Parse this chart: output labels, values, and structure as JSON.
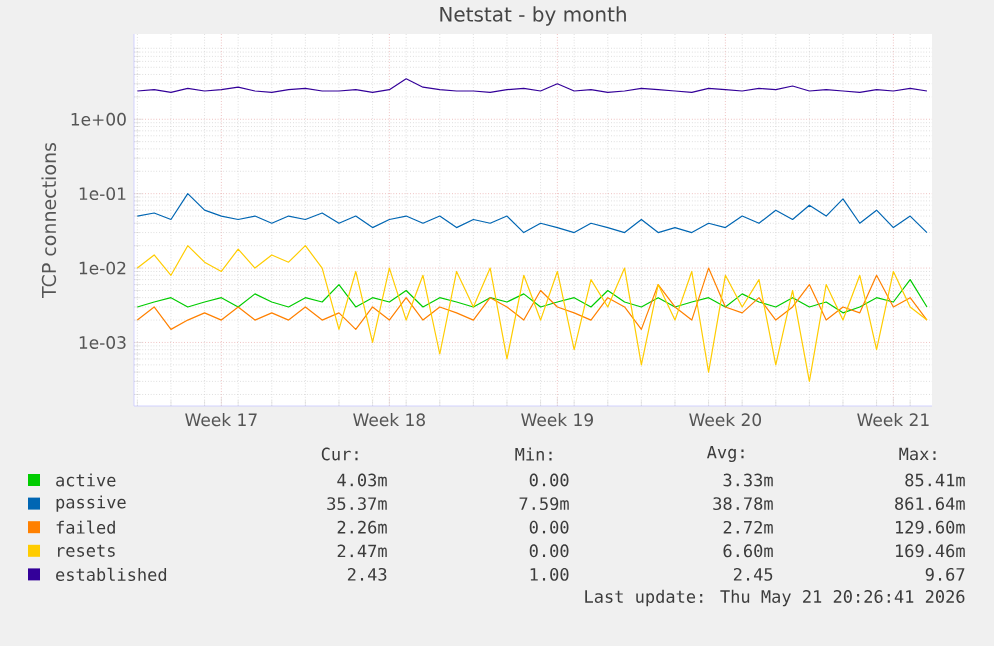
{
  "chart_data": {
    "type": "line",
    "title": "Netstat - by month",
    "ylabel": "TCP connections",
    "log": "y",
    "grid": true,
    "legend": "bottom",
    "marker": "none",
    "line_style": "solid",
    "categories": [
      null,
      null,
      null,
      null,
      null,
      "Week 17",
      null,
      null,
      null,
      null,
      null,
      null,
      null,
      null,
      null,
      "Week 18",
      null,
      null,
      null,
      null,
      null,
      null,
      null,
      null,
      null,
      "Week 19",
      null,
      null,
      null,
      null,
      null,
      null,
      null,
      null,
      null,
      "Week 20",
      null,
      null,
      null,
      null,
      null,
      null,
      null,
      null,
      null,
      "Week 21",
      null,
      null
    ],
    "ylim": [
      0.00014,
      14
    ],
    "yticks": [
      {
        "value": 0.001,
        "label": "1e-03"
      },
      {
        "value": 0.01,
        "label": "1e-02"
      },
      {
        "value": 0.1,
        "label": "1e-01"
      },
      {
        "value": 1,
        "label": "1e+00"
      }
    ],
    "series": [
      {
        "name": "active",
        "color": "#00cc00",
        "values": [
          0.003,
          0.0035,
          0.004,
          0.003,
          0.0035,
          0.004,
          0.003,
          0.0045,
          0.0035,
          0.003,
          0.004,
          0.0035,
          0.006,
          0.003,
          0.004,
          0.0035,
          0.005,
          0.003,
          0.004,
          0.0035,
          0.003,
          0.004,
          0.0035,
          0.0045,
          0.003,
          0.0035,
          0.004,
          0.003,
          0.005,
          0.0035,
          0.003,
          0.004,
          0.003,
          0.0035,
          0.004,
          0.003,
          0.0045,
          0.0035,
          0.003,
          0.004,
          0.003,
          0.0035,
          0.0025,
          0.003,
          0.004,
          0.0035,
          0.007,
          0.003
        ]
      },
      {
        "name": "passive",
        "color": "#0066b3",
        "values": [
          0.05,
          0.055,
          0.045,
          0.1,
          0.06,
          0.05,
          0.045,
          0.05,
          0.04,
          0.05,
          0.045,
          0.055,
          0.04,
          0.05,
          0.035,
          0.045,
          0.05,
          0.04,
          0.05,
          0.035,
          0.045,
          0.04,
          0.05,
          0.03,
          0.04,
          0.035,
          0.03,
          0.04,
          0.035,
          0.03,
          0.045,
          0.03,
          0.035,
          0.03,
          0.04,
          0.035,
          0.05,
          0.04,
          0.06,
          0.045,
          0.07,
          0.05,
          0.085,
          0.04,
          0.06,
          0.035,
          0.05,
          0.03
        ]
      },
      {
        "name": "failed",
        "color": "#ff8000",
        "values": [
          0.002,
          0.003,
          0.0015,
          0.002,
          0.0025,
          0.002,
          0.003,
          0.002,
          0.0025,
          0.002,
          0.003,
          0.002,
          0.0025,
          0.0015,
          0.003,
          0.002,
          0.004,
          0.002,
          0.003,
          0.0025,
          0.002,
          0.004,
          0.003,
          0.002,
          0.005,
          0.003,
          0.0025,
          0.002,
          0.004,
          0.003,
          0.0015,
          0.006,
          0.003,
          0.002,
          0.01,
          0.003,
          0.0025,
          0.004,
          0.002,
          0.003,
          0.006,
          0.002,
          0.003,
          0.0025,
          0.008,
          0.003,
          0.004,
          0.002
        ]
      },
      {
        "name": "resets",
        "color": "#ffcc00",
        "values": [
          0.01,
          0.015,
          0.008,
          0.02,
          0.012,
          0.009,
          0.018,
          0.01,
          0.015,
          0.012,
          0.02,
          0.01,
          0.0015,
          0.009,
          0.001,
          0.01,
          0.002,
          0.008,
          0.0007,
          0.009,
          0.003,
          0.01,
          0.0006,
          0.008,
          0.002,
          0.009,
          0.0008,
          0.007,
          0.003,
          0.01,
          0.0005,
          0.006,
          0.002,
          0.009,
          0.0004,
          0.008,
          0.003,
          0.007,
          0.0005,
          0.005,
          0.0003,
          0.006,
          0.002,
          0.008,
          0.0008,
          0.009,
          0.003,
          0.002
        ]
      },
      {
        "name": "established",
        "color": "#330099",
        "values": [
          2.4,
          2.5,
          2.3,
          2.6,
          2.4,
          2.5,
          2.7,
          2.4,
          2.3,
          2.5,
          2.6,
          2.4,
          2.4,
          2.5,
          2.3,
          2.5,
          3.5,
          2.7,
          2.5,
          2.4,
          2.4,
          2.3,
          2.5,
          2.6,
          2.4,
          3.0,
          2.4,
          2.5,
          2.3,
          2.4,
          2.6,
          2.5,
          2.4,
          2.3,
          2.6,
          2.5,
          2.4,
          2.6,
          2.5,
          2.8,
          2.4,
          2.5,
          2.4,
          2.3,
          2.5,
          2.4,
          2.6,
          2.4
        ]
      }
    ],
    "annotations": [
      "Cur:",
      "Min:",
      "Avg:",
      "Max:",
      "4.03m",
      "0.00",
      "3.33m",
      "85.41m",
      "35.37m",
      "7.59m",
      "38.78m",
      "861.64m",
      "2.26m",
      "0.00",
      "2.72m",
      "129.60m",
      "2.47m",
      "0.00",
      "6.60m",
      "169.46m",
      "2.43",
      "1.00",
      "2.45",
      "9.67",
      "Last update: Thu May 21 20:26:41 2026"
    ]
  }
}
